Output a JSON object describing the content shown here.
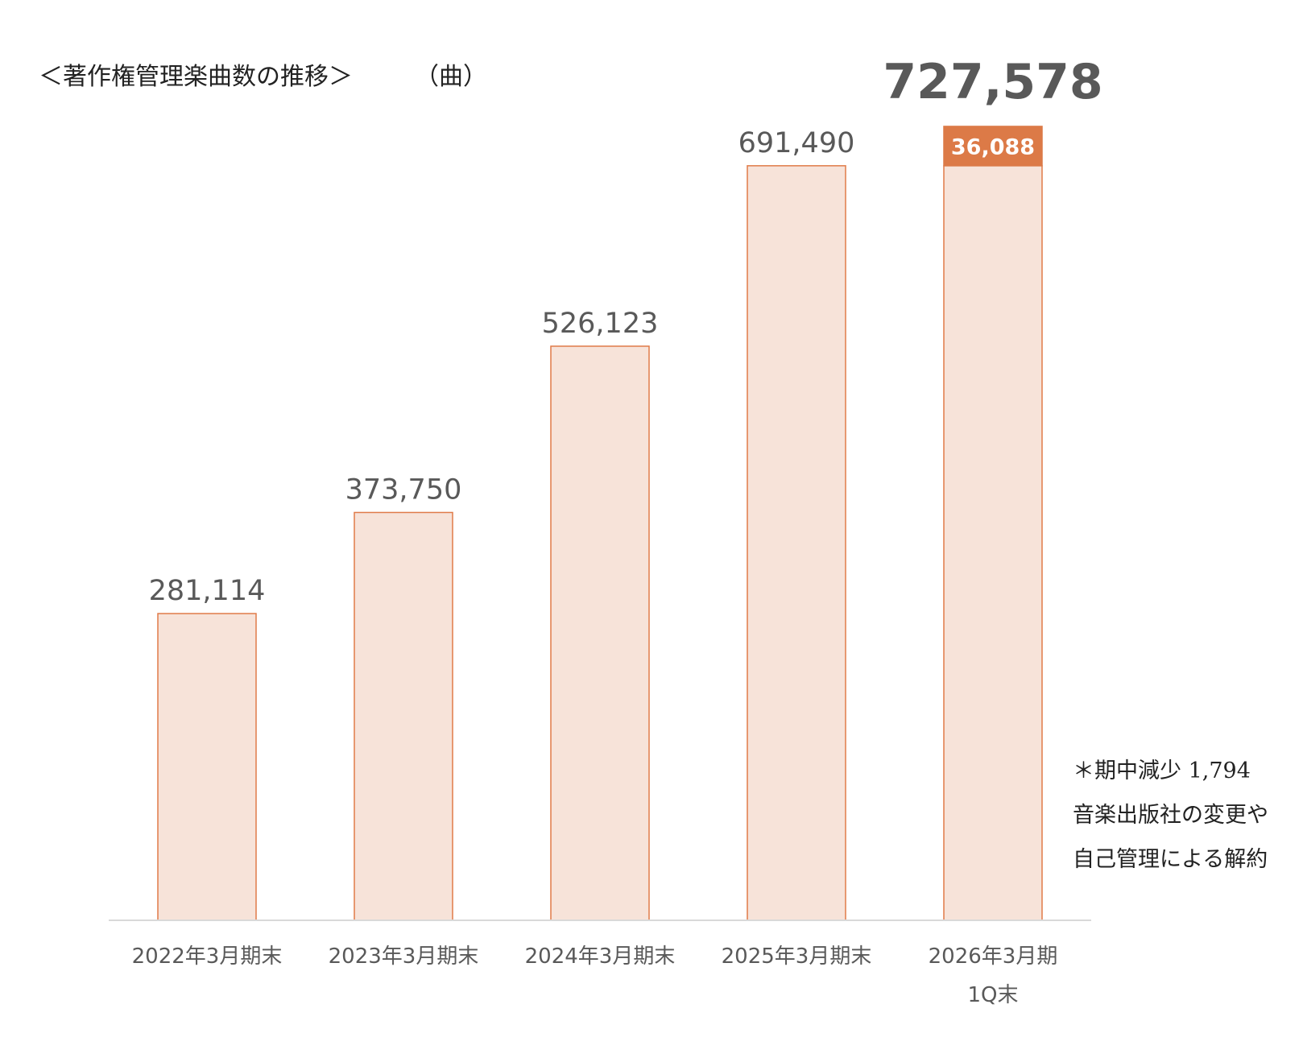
{
  "chart_data": {
    "type": "bar",
    "title": "＜著作権管理楽曲数の推移＞",
    "unit": "（曲）",
    "categories": [
      [
        "2022年3月期末"
      ],
      [
        "2023年3月期末"
      ],
      [
        "2024年3月期末"
      ],
      [
        "2025年3月期末"
      ],
      [
        "2026年3月期",
        "1Q末"
      ]
    ],
    "series": [
      {
        "values": [
          281114,
          373750,
          526123,
          691490,
          691490
        ],
        "labels": [
          "281,114",
          "373,750",
          "526,123",
          "691,490",
          ""
        ],
        "color": "#F7E3D9",
        "border": "#E07B49"
      },
      {
        "values": [
          0,
          0,
          0,
          0,
          36088
        ],
        "labels": [
          "",
          "",
          "",
          "",
          "36,088"
        ],
        "color": "#DC7A47",
        "border": "#DC7A47"
      }
    ],
    "totals": [
      null,
      null,
      null,
      null,
      {
        "value": 727578,
        "label": "727,578"
      }
    ],
    "ylim": [
      0,
      760000
    ],
    "grid": false,
    "legend": "none"
  },
  "note": {
    "lines": [
      "＊期中減少 1,794",
      "音楽出版社の変更や",
      "自己管理による解約"
    ]
  },
  "colors": {
    "text": "#595959",
    "baseline": "#D9D9D9",
    "label_highlight": "#FFFFFF"
  }
}
